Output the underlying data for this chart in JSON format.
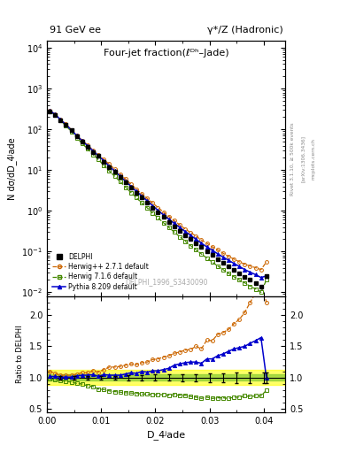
{
  "title_left": "91 GeV ee",
  "title_right": "γ*/Z (Hadronic)",
  "plot_title": "Four-jet fraction(ℓᴰʰ–Jade)",
  "xlabel": "D_4ʲade",
  "ylabel_main": "N dσ/dD_4ʲade",
  "ylabel_ratio": "Ratio to DELPHI",
  "watermark": "DELPHI_1996_S3430090",
  "rivet_label": "Rivet 3.1.10, ≥ 500k events",
  "arxiv_label": "[arXiv:1306.3436]",
  "mcplots_label": "mcplots.cern.ch",
  "delphi_x": [
    0.0005,
    0.0015,
    0.0025,
    0.0035,
    0.0045,
    0.0055,
    0.0065,
    0.0075,
    0.0085,
    0.0095,
    0.0105,
    0.0115,
    0.0125,
    0.0135,
    0.0145,
    0.0155,
    0.0165,
    0.0175,
    0.0185,
    0.0195,
    0.0205,
    0.0215,
    0.0225,
    0.0235,
    0.0245,
    0.0255,
    0.0265,
    0.0275,
    0.0285,
    0.0295,
    0.0305,
    0.0315,
    0.0325,
    0.0335,
    0.0345,
    0.0355,
    0.0365,
    0.0375,
    0.0385,
    0.0395,
    0.0405
  ],
  "delphi_y": [
    280,
    230,
    170,
    130,
    95,
    68,
    50,
    38,
    28,
    22,
    16,
    12,
    9.0,
    6.8,
    5.0,
    3.7,
    2.8,
    2.1,
    1.6,
    1.2,
    0.92,
    0.7,
    0.54,
    0.41,
    0.32,
    0.25,
    0.2,
    0.16,
    0.13,
    0.1,
    0.082,
    0.065,
    0.053,
    0.043,
    0.035,
    0.029,
    0.024,
    0.02,
    0.017,
    0.014,
    0.025
  ],
  "delphi_yerr": [
    5,
    4,
    3,
    2.5,
    2,
    1.5,
    1,
    0.8,
    0.6,
    0.5,
    0.4,
    0.3,
    0.25,
    0.2,
    0.15,
    0.12,
    0.1,
    0.08,
    0.06,
    0.05,
    0.04,
    0.03,
    0.025,
    0.02,
    0.015,
    0.012,
    0.01,
    0.008,
    0.007,
    0.006,
    0.005,
    0.004,
    0.003,
    0.003,
    0.002,
    0.002,
    0.002,
    0.001,
    0.001,
    0.001,
    0.003
  ],
  "herwig_pp_y": [
    290,
    240,
    175,
    135,
    98,
    72,
    54,
    41,
    31,
    24,
    18,
    14,
    10.5,
    8.0,
    6.0,
    4.5,
    3.4,
    2.6,
    2.0,
    1.55,
    1.2,
    0.93,
    0.73,
    0.57,
    0.45,
    0.36,
    0.29,
    0.24,
    0.19,
    0.16,
    0.13,
    0.11,
    0.091,
    0.076,
    0.065,
    0.056,
    0.049,
    0.044,
    0.04,
    0.036,
    0.055
  ],
  "herwig7_y": [
    275,
    225,
    163,
    122,
    88,
    62,
    45,
    33,
    24,
    18,
    13,
    9.5,
    7.0,
    5.2,
    3.8,
    2.8,
    2.1,
    1.55,
    1.18,
    0.88,
    0.67,
    0.51,
    0.39,
    0.3,
    0.23,
    0.18,
    0.14,
    0.11,
    0.087,
    0.069,
    0.055,
    0.044,
    0.036,
    0.029,
    0.024,
    0.02,
    0.017,
    0.014,
    0.012,
    0.01,
    0.02
  ],
  "pythia_y": [
    285,
    235,
    172,
    131,
    96,
    70,
    52,
    39.5,
    29.5,
    22.5,
    16.8,
    12.5,
    9.4,
    7.1,
    5.3,
    4.0,
    3.0,
    2.3,
    1.75,
    1.33,
    1.02,
    0.79,
    0.62,
    0.49,
    0.39,
    0.31,
    0.25,
    0.2,
    0.16,
    0.13,
    0.107,
    0.088,
    0.073,
    0.061,
    0.051,
    0.043,
    0.036,
    0.031,
    0.027,
    0.023,
    0.025
  ],
  "color_delphi": "#000000",
  "color_herwig_pp": "#cc6600",
  "color_herwig7": "#448800",
  "color_pythia": "#0000cc",
  "ratio_herwig_pp": [
    1.1,
    1.07,
    1.04,
    1.04,
    1.04,
    1.06,
    1.08,
    1.08,
    1.11,
    1.09,
    1.13,
    1.17,
    1.17,
    1.18,
    1.2,
    1.22,
    1.21,
    1.24,
    1.25,
    1.29,
    1.3,
    1.33,
    1.35,
    1.39,
    1.41,
    1.44,
    1.45,
    1.5,
    1.46,
    1.6,
    1.59,
    1.69,
    1.72,
    1.77,
    1.86,
    1.93,
    2.04,
    2.2,
    2.35,
    2.57,
    2.2
  ],
  "ratio_herwig7": [
    0.98,
    0.975,
    0.96,
    0.94,
    0.93,
    0.91,
    0.9,
    0.87,
    0.86,
    0.82,
    0.81,
    0.79,
    0.78,
    0.77,
    0.76,
    0.757,
    0.75,
    0.74,
    0.74,
    0.73,
    0.73,
    0.73,
    0.72,
    0.73,
    0.72,
    0.72,
    0.7,
    0.69,
    0.67,
    0.69,
    0.67,
    0.68,
    0.68,
    0.67,
    0.69,
    0.69,
    0.71,
    0.7,
    0.71,
    0.71,
    0.8
  ],
  "ratio_pythia": [
    1.02,
    1.02,
    1.01,
    1.01,
    1.01,
    1.03,
    1.04,
    1.04,
    1.05,
    1.02,
    1.05,
    1.04,
    1.04,
    1.04,
    1.06,
    1.08,
    1.07,
    1.1,
    1.09,
    1.11,
    1.11,
    1.13,
    1.15,
    1.2,
    1.22,
    1.24,
    1.25,
    1.25,
    1.23,
    1.3,
    1.3,
    1.35,
    1.38,
    1.42,
    1.46,
    1.48,
    1.5,
    1.55,
    1.59,
    1.64,
    1.0
  ],
  "ratio_delphi_err_inner": 0.05,
  "ratio_delphi_err_outer": 0.12,
  "xlim": [
    0.0,
    0.044
  ],
  "ylim_main": [
    0.008,
    15000
  ],
  "ylim_ratio": [
    0.45,
    2.3
  ]
}
